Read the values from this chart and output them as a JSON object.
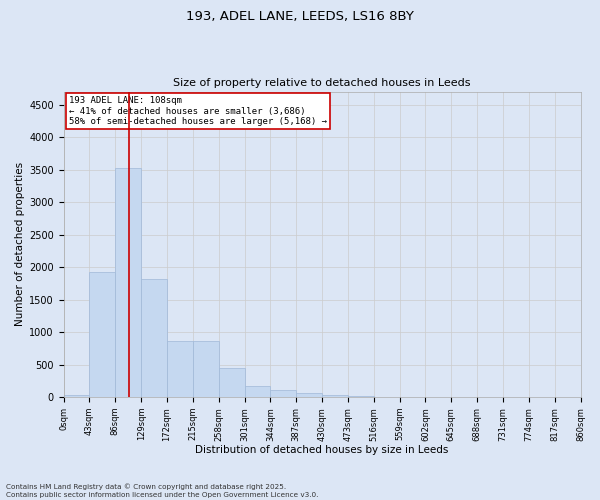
{
  "title_line1": "193, ADEL LANE, LEEDS, LS16 8BY",
  "title_line2": "Size of property relative to detached houses in Leeds",
  "xlabel": "Distribution of detached houses by size in Leeds",
  "ylabel": "Number of detached properties",
  "bin_labels": [
    "0sqm",
    "43sqm",
    "86sqm",
    "129sqm",
    "172sqm",
    "215sqm",
    "258sqm",
    "301sqm",
    "344sqm",
    "387sqm",
    "430sqm",
    "473sqm",
    "516sqm",
    "559sqm",
    "602sqm",
    "645sqm",
    "688sqm",
    "731sqm",
    "774sqm",
    "817sqm",
    "860sqm"
  ],
  "bar_values": [
    30,
    1930,
    3520,
    1820,
    870,
    870,
    450,
    175,
    115,
    65,
    35,
    15,
    5,
    3,
    2,
    1,
    0,
    0,
    0,
    0
  ],
  "bar_color": "#c5d8f0",
  "bar_edge_color": "#a0b8d8",
  "property_line_x": 2.51,
  "property_line_color": "#cc0000",
  "annotation_title": "193 ADEL LANE: 108sqm",
  "annotation_line1": "← 41% of detached houses are smaller (3,686)",
  "annotation_line2": "58% of semi-detached houses are larger (5,168) →",
  "annotation_box_color": "#ffffff",
  "annotation_box_edge": "#cc0000",
  "ylim": [
    0,
    4700
  ],
  "yticks": [
    0,
    500,
    1000,
    1500,
    2000,
    2500,
    3000,
    3500,
    4000,
    4500
  ],
  "grid_color": "#cccccc",
  "bg_color": "#dce6f5",
  "footnote1": "Contains HM Land Registry data © Crown copyright and database right 2025.",
  "footnote2": "Contains public sector information licensed under the Open Government Licence v3.0."
}
